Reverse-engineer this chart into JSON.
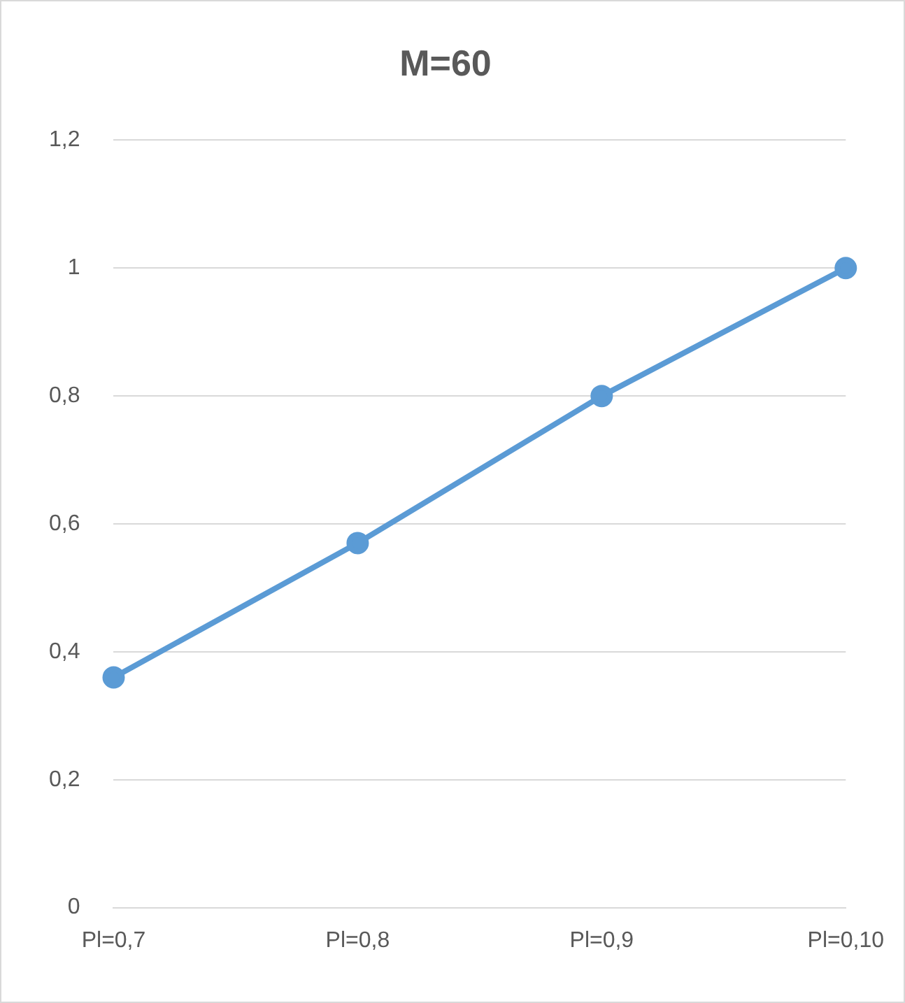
{
  "chart_data": {
    "type": "line",
    "title": "M=60",
    "categories": [
      "Pl=0,7",
      "Pl=0,8",
      "Pl=0,9",
      "Pl=0,10"
    ],
    "series": [
      {
        "color": "#5b9bd5",
        "values": [
          0.36,
          0.57,
          0.8,
          1.0
        ]
      }
    ],
    "ylim": [
      0,
      1.2
    ],
    "yticks": [
      0,
      {
        "value": 0.2,
        "label": "0,2"
      },
      {
        "value": 0.4,
        "label": "0,4"
      },
      {
        "value": 0.6,
        "label": "0,6"
      },
      {
        "value": 0.8,
        "label": "0,8"
      },
      1,
      {
        "value": 1.2,
        "label": "1,2"
      }
    ],
    "grid": "y",
    "legend": false,
    "marker": "circle",
    "line_style": "solid"
  }
}
